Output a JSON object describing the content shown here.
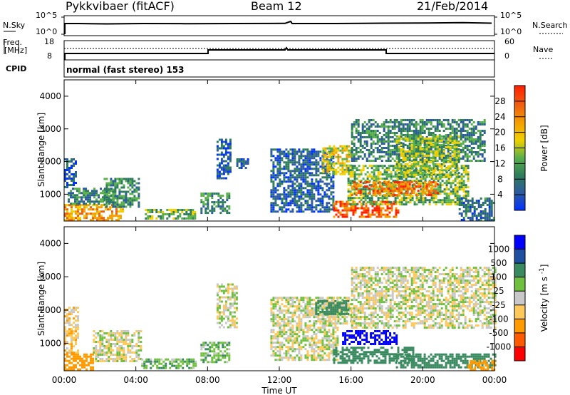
{
  "header": {
    "station": "Pykkvibaer (fitACF)",
    "beam": "Beam 12",
    "date": "21/Feb/2014"
  },
  "panels": {
    "sky": {
      "label": "N.Sky",
      "left_top": "10^5",
      "left_bottom": "10^0",
      "right_top": "10^5",
      "right_bottom": "10^0",
      "right_label": "N.Search"
    },
    "freq": {
      "label_top": "Freq.",
      "label_unit": "[MHz]",
      "left_top": "18",
      "left_bottom": "8",
      "right_top": "60",
      "right_bottom": "0",
      "right_label": "Nave"
    },
    "cpid": {
      "label": "CPID",
      "text": "normal (fast stereo) 153"
    }
  },
  "colors": {
    "power_scale": [
      "#0033ff",
      "#2c5aa0",
      "#2e7d5a",
      "#58b04a",
      "#f0d000",
      "#f5a000",
      "#f06010",
      "#ff2000"
    ],
    "velocity_scale": [
      "#ff0000",
      "#ff5a00",
      "#ff9a00",
      "#ffc85a",
      "#c8c8c8",
      "#70c040",
      "#3a8a60",
      "#1f4fa0",
      "#0000ff"
    ]
  },
  "chart_data": [
    {
      "type": "heatmap",
      "title": "Power",
      "xlabel": "Time UT",
      "ylabel": "Slant Range [km]",
      "xlim": [
        0,
        24
      ],
      "ylim": [
        180,
        4500
      ],
      "x_tick_labels": [
        "00:00",
        "04:00",
        "08:00",
        "12:00",
        "16:00",
        "20:00",
        "00:00"
      ],
      "y_tick_labels": [
        "1000",
        "2000",
        "3000",
        "4000"
      ],
      "colorbar": {
        "label": "Power [dB]",
        "range": [
          0,
          32
        ],
        "tick_labels": [
          "4",
          "8",
          "12",
          "16",
          "20",
          "24",
          "28"
        ]
      },
      "regions": [
        {
          "t0": 0.0,
          "t1": 3.3,
          "r0": 200,
          "r1": 700,
          "value": 22
        },
        {
          "t0": 0.2,
          "t1": 2.8,
          "r0": 700,
          "r1": 1200,
          "value": 10
        },
        {
          "t0": 0.0,
          "t1": 0.6,
          "r0": 1200,
          "r1": 2100,
          "value": 6
        },
        {
          "t0": 2.2,
          "t1": 4.2,
          "r0": 600,
          "r1": 1500,
          "value": 11
        },
        {
          "t0": 4.5,
          "t1": 7.3,
          "r0": 250,
          "r1": 550,
          "value": 14
        },
        {
          "t0": 7.6,
          "t1": 9.2,
          "r0": 450,
          "r1": 1050,
          "value": 10
        },
        {
          "t0": 8.5,
          "t1": 9.3,
          "r0": 1500,
          "r1": 2700,
          "value": 6
        },
        {
          "t0": 9.6,
          "t1": 10.2,
          "r0": 1800,
          "r1": 2100,
          "value": 6
        },
        {
          "t0": 11.5,
          "t1": 15.0,
          "r0": 500,
          "r1": 2400,
          "value": 7
        },
        {
          "t0": 14.4,
          "t1": 16.0,
          "r0": 1600,
          "r1": 2500,
          "value": 18
        },
        {
          "t0": 15.0,
          "t1": 18.6,
          "r0": 300,
          "r1": 800,
          "value": 27
        },
        {
          "t0": 15.8,
          "t1": 22.5,
          "r0": 700,
          "r1": 1900,
          "value": 14
        },
        {
          "t0": 16.0,
          "t1": 20.8,
          "r0": 1000,
          "r1": 1400,
          "value": 25
        },
        {
          "t0": 16.0,
          "t1": 23.5,
          "r0": 2000,
          "r1": 3300,
          "value": 10
        },
        {
          "t0": 18.5,
          "t1": 22.0,
          "r0": 1500,
          "r1": 2800,
          "value": 15
        },
        {
          "t0": 22.0,
          "t1": 24.0,
          "r0": 200,
          "r1": 900,
          "value": 8
        }
      ]
    },
    {
      "type": "heatmap",
      "title": "Velocity",
      "xlabel": "Time UT",
      "ylabel": "Slant Range [km]",
      "xlim": [
        0,
        24
      ],
      "ylim": [
        180,
        4500
      ],
      "x_tick_labels": [
        "00:00",
        "04:00",
        "08:00",
        "12:00",
        "16:00",
        "20:00",
        "00:00"
      ],
      "y_tick_labels": [
        "1000",
        "2000",
        "3000",
        "4000"
      ],
      "colorbar": {
        "label": "Velocity [m s^-1]",
        "boundaries": [
          -1000,
          -500,
          -100,
          -25,
          25,
          100,
          500,
          1000
        ],
        "tick_labels": [
          "1000",
          "500",
          "100",
          "25",
          "-25",
          "-100",
          "-500",
          "-1000"
        ]
      },
      "regions": [
        {
          "t0": 0.0,
          "t1": 1.6,
          "r0": 200,
          "r1": 700,
          "value": -300
        },
        {
          "t0": 0.0,
          "t1": 0.8,
          "r0": 700,
          "r1": 2100,
          "value": -60
        },
        {
          "t0": 1.6,
          "t1": 4.3,
          "r0": 500,
          "r1": 1400,
          "value": 0
        },
        {
          "t0": 4.3,
          "t1": 7.3,
          "r0": 250,
          "r1": 550,
          "value": 80
        },
        {
          "t0": 7.6,
          "t1": 9.2,
          "r0": 450,
          "r1": 1050,
          "value": 70
        },
        {
          "t0": 8.5,
          "t1": 9.6,
          "r0": 1500,
          "r1": 2800,
          "value": 0
        },
        {
          "t0": 11.5,
          "t1": 15.2,
          "r0": 500,
          "r1": 2400,
          "value": 0
        },
        {
          "t0": 14.4,
          "t1": 16.0,
          "r0": 1600,
          "r1": 2400,
          "value": 0
        },
        {
          "t0": 14.0,
          "t1": 15.8,
          "r0": 1900,
          "r1": 2300,
          "value": 300
        },
        {
          "t0": 15.5,
          "t1": 18.5,
          "r0": 1000,
          "r1": 1400,
          "value": 1100
        },
        {
          "t0": 15.0,
          "t1": 19.5,
          "r0": 400,
          "r1": 900,
          "value": 350
        },
        {
          "t0": 16.0,
          "t1": 24.0,
          "r0": 1500,
          "r1": 3300,
          "value": 0
        },
        {
          "t0": 18.5,
          "t1": 24.0,
          "r0": 300,
          "r1": 700,
          "value": 250
        },
        {
          "t0": 22.5,
          "t1": 24.0,
          "r0": 200,
          "r1": 500,
          "value": -200
        }
      ]
    }
  ]
}
